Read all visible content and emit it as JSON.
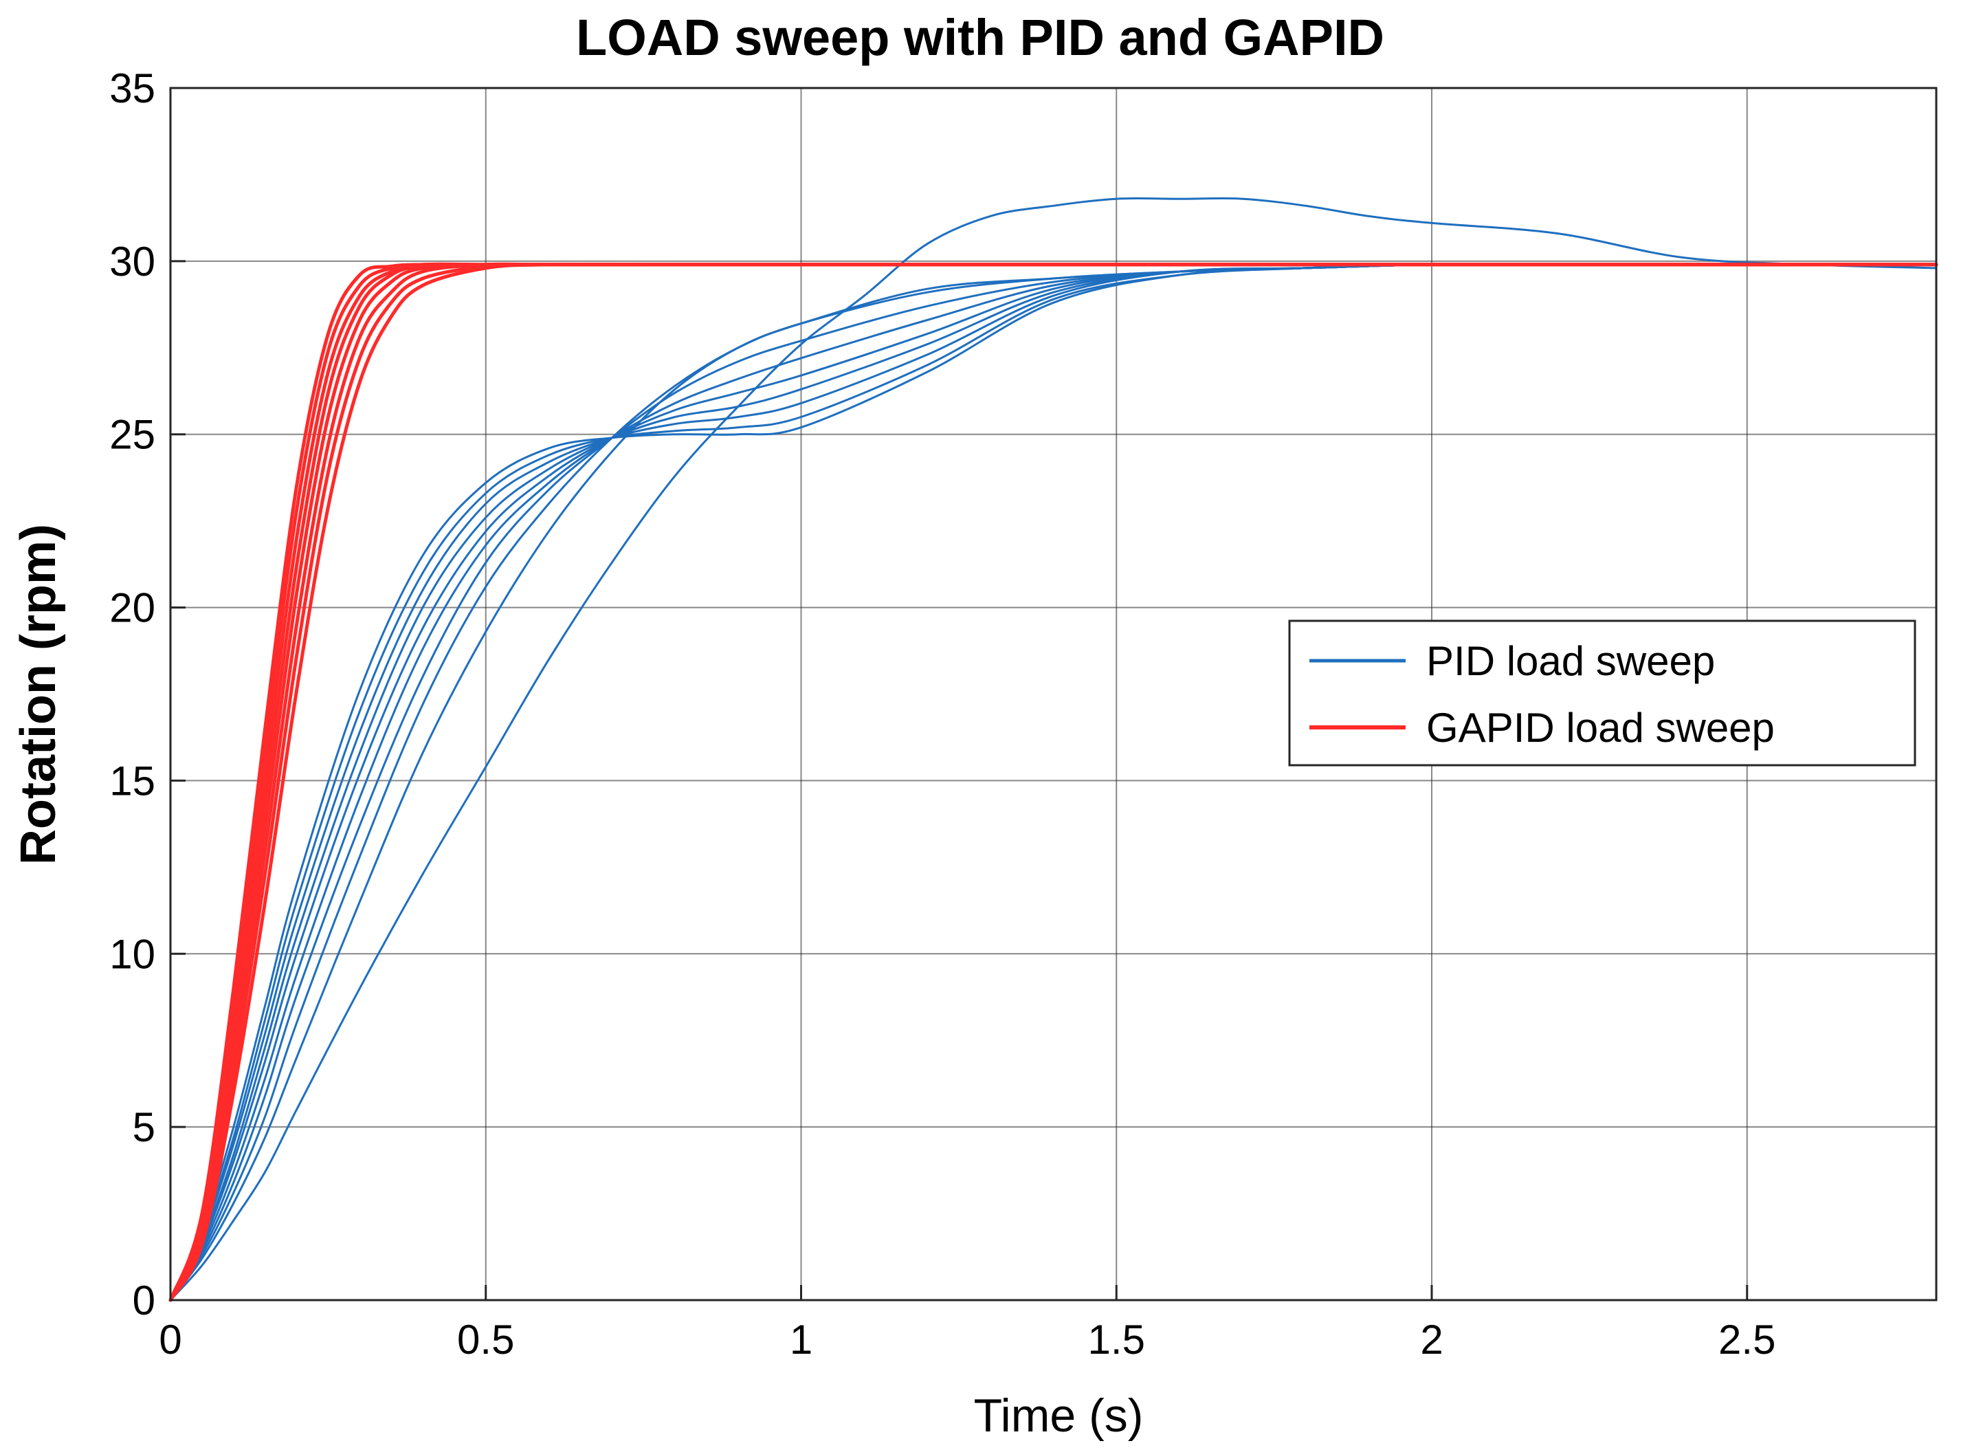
{
  "chart_data": {
    "type": "line",
    "title": "LOAD sweep with PID and GAPID",
    "xlabel": "Time (s)",
    "ylabel": "Rotation (rpm)",
    "xlim": [
      0,
      2.8
    ],
    "ylim": [
      0,
      35
    ],
    "xticks": [
      0,
      0.5,
      1,
      1.5,
      2,
      2.5
    ],
    "xtick_labels": [
      "0",
      "0.5",
      "1",
      "1.5",
      "2",
      "2.5"
    ],
    "yticks": [
      0,
      5,
      10,
      15,
      20,
      25,
      30,
      35
    ],
    "ytick_labels": [
      "0",
      "5",
      "10",
      "15",
      "20",
      "25",
      "30",
      "35"
    ],
    "grid": true,
    "legend": {
      "position": "center-right",
      "entries": [
        {
          "label": "PID load sweep",
          "color": "#1f6fbf"
        },
        {
          "label": "GAPID load sweep",
          "color": "#ff2a2a"
        }
      ]
    },
    "series": [
      {
        "name": "PID load sweep (load 1)",
        "group": "PID",
        "color": "#1f6fbf",
        "x": [
          0,
          0.05,
          0.1,
          0.15,
          0.2,
          0.3,
          0.4,
          0.5,
          0.6,
          0.7,
          0.8,
          0.9,
          1.0,
          1.2,
          1.4,
          1.6,
          1.8,
          2.0,
          2.2,
          2.4,
          2.6,
          2.8
        ],
        "y": [
          0,
          2,
          5,
          8.5,
          12,
          17.6,
          21.5,
          23.6,
          24.6,
          24.9,
          25.0,
          25.0,
          25.2,
          26.8,
          28.8,
          29.6,
          29.8,
          29.9,
          29.9,
          29.9,
          29.9,
          29.9
        ]
      },
      {
        "name": "PID load sweep (load 2)",
        "group": "PID",
        "color": "#1f6fbf",
        "x": [
          0,
          0.05,
          0.1,
          0.15,
          0.2,
          0.3,
          0.4,
          0.5,
          0.6,
          0.7,
          0.8,
          0.9,
          1.0,
          1.2,
          1.4,
          1.6,
          1.8,
          2.0,
          2.2,
          2.4,
          2.6,
          2.8
        ],
        "y": [
          0,
          1.9,
          4.7,
          8.1,
          11.5,
          17.0,
          21.0,
          23.3,
          24.4,
          24.9,
          25.1,
          25.2,
          25.5,
          27.0,
          28.9,
          29.6,
          29.8,
          29.9,
          29.9,
          29.9,
          29.9,
          29.9
        ]
      },
      {
        "name": "PID load sweep (load 3)",
        "group": "PID",
        "color": "#1f6fbf",
        "x": [
          0,
          0.05,
          0.1,
          0.15,
          0.2,
          0.3,
          0.4,
          0.5,
          0.6,
          0.7,
          0.8,
          0.9,
          1.0,
          1.2,
          1.4,
          1.6,
          1.8,
          2.0,
          2.2,
          2.4,
          2.6,
          2.8
        ],
        "y": [
          0,
          1.8,
          4.5,
          7.7,
          11.0,
          16.4,
          20.5,
          23.0,
          24.2,
          24.9,
          25.3,
          25.5,
          25.9,
          27.3,
          29.0,
          29.7,
          29.8,
          29.9,
          29.9,
          29.9,
          29.9,
          29.9
        ]
      },
      {
        "name": "PID load sweep (load 4)",
        "group": "PID",
        "color": "#1f6fbf",
        "x": [
          0,
          0.05,
          0.1,
          0.15,
          0.2,
          0.3,
          0.4,
          0.5,
          0.6,
          0.7,
          0.8,
          0.9,
          1.0,
          1.2,
          1.4,
          1.6,
          1.8,
          2.0,
          2.2,
          2.4,
          2.6,
          2.8
        ],
        "y": [
          0,
          1.7,
          4.2,
          7.3,
          10.5,
          15.8,
          20.0,
          22.6,
          24.0,
          24.9,
          25.5,
          25.8,
          26.3,
          27.6,
          29.1,
          29.7,
          29.8,
          29.9,
          29.9,
          29.9,
          29.9,
          29.9
        ]
      },
      {
        "name": "PID load sweep (load 5)",
        "group": "PID",
        "color": "#1f6fbf",
        "x": [
          0,
          0.05,
          0.1,
          0.15,
          0.2,
          0.3,
          0.4,
          0.5,
          0.6,
          0.7,
          0.8,
          0.9,
          1.0,
          1.2,
          1.4,
          1.6,
          1.8,
          2.0,
          2.2,
          2.4,
          2.6,
          2.8
        ],
        "y": [
          0,
          1.6,
          4.0,
          6.9,
          10.0,
          15.2,
          19.4,
          22.2,
          23.8,
          24.9,
          25.7,
          26.2,
          26.7,
          27.9,
          29.2,
          29.7,
          29.8,
          29.9,
          29.9,
          29.9,
          29.9,
          29.9
        ]
      },
      {
        "name": "PID load sweep (load 6)",
        "group": "PID",
        "color": "#1f6fbf",
        "x": [
          0,
          0.05,
          0.1,
          0.15,
          0.2,
          0.3,
          0.4,
          0.5,
          0.6,
          0.7,
          0.8,
          0.9,
          1.0,
          1.2,
          1.4,
          1.6,
          1.8,
          2.0,
          2.2,
          2.4,
          2.6,
          2.8
        ],
        "y": [
          0,
          1.5,
          3.7,
          6.4,
          9.4,
          14.5,
          18.8,
          21.8,
          23.6,
          24.9,
          25.9,
          26.6,
          27.2,
          28.3,
          29.3,
          29.7,
          29.8,
          29.9,
          29.9,
          29.9,
          29.9,
          29.9
        ]
      },
      {
        "name": "PID load sweep (load 7)",
        "group": "PID",
        "color": "#1f6fbf",
        "x": [
          0,
          0.05,
          0.1,
          0.15,
          0.2,
          0.3,
          0.4,
          0.5,
          0.6,
          0.7,
          0.8,
          0.9,
          1.0,
          1.2,
          1.4,
          1.6,
          1.8,
          2.0,
          2.2,
          2.4,
          2.6,
          2.8
        ],
        "y": [
          0,
          1.4,
          3.4,
          5.9,
          8.8,
          13.7,
          18.0,
          21.3,
          23.4,
          24.9,
          26.2,
          27.1,
          27.7,
          28.7,
          29.4,
          29.7,
          29.8,
          29.9,
          29.9,
          29.9,
          29.9,
          29.9
        ]
      },
      {
        "name": "PID load sweep (load 8)",
        "group": "PID",
        "color": "#1f6fbf",
        "x": [
          0,
          0.05,
          0.1,
          0.15,
          0.2,
          0.3,
          0.4,
          0.5,
          0.6,
          0.7,
          0.8,
          0.9,
          1.0,
          1.2,
          1.4,
          1.6,
          1.8,
          2.0,
          2.2,
          2.4,
          2.6,
          2.8
        ],
        "y": [
          0,
          1.3,
          3.1,
          5.3,
          8.0,
          12.8,
          17.2,
          20.6,
          23.0,
          24.9,
          26.4,
          27.5,
          28.2,
          29.1,
          29.5,
          29.7,
          29.8,
          29.9,
          29.9,
          29.9,
          29.9,
          29.9
        ]
      },
      {
        "name": "PID load sweep (load 9)",
        "group": "PID",
        "color": "#1f6fbf",
        "x": [
          0,
          0.05,
          0.1,
          0.15,
          0.2,
          0.3,
          0.4,
          0.5,
          0.6,
          0.7,
          0.8,
          0.9,
          1.0,
          1.2,
          1.4,
          1.6,
          1.8,
          2.0,
          2.2,
          2.4,
          2.6,
          2.8
        ],
        "y": [
          0,
          1.2,
          2.8,
          4.7,
          7.0,
          11.5,
          15.8,
          19.3,
          22.2,
          24.5,
          26.3,
          27.5,
          28.2,
          29.2,
          29.5,
          29.7,
          29.8,
          29.9,
          29.9,
          29.9,
          29.9,
          29.9
        ]
      },
      {
        "name": "PID load sweep (load 10)",
        "group": "PID",
        "color": "#1f6fbf",
        "x": [
          0,
          0.05,
          0.1,
          0.15,
          0.2,
          0.3,
          0.4,
          0.5,
          0.6,
          0.7,
          0.8,
          0.9,
          1.0,
          1.1,
          1.2,
          1.3,
          1.4,
          1.5,
          1.6,
          1.7,
          1.8,
          1.9,
          2.0,
          2.2,
          2.4,
          2.6,
          2.8
        ],
        "y": [
          0,
          1.0,
          2.3,
          3.7,
          5.5,
          9.0,
          12.3,
          15.4,
          18.5,
          21.3,
          23.8,
          25.8,
          27.6,
          29.0,
          30.5,
          31.3,
          31.6,
          31.8,
          31.8,
          31.8,
          31.6,
          31.3,
          31.1,
          30.8,
          30.1,
          29.9,
          29.8
        ]
      },
      {
        "name": "GAPID load sweep (load 1)",
        "group": "GAPID",
        "color": "#ff2a2a",
        "x": [
          0,
          0.05,
          0.1,
          0.15,
          0.2,
          0.25,
          0.3,
          0.35,
          0.4,
          0.5,
          0.6,
          0.8,
          1.0,
          1.5,
          2.0,
          2.5,
          2.8
        ],
        "y": [
          0,
          2.5,
          9.0,
          16.5,
          23.5,
          27.9,
          29.6,
          29.85,
          29.9,
          29.9,
          29.9,
          29.9,
          29.9,
          29.9,
          29.9,
          29.9,
          29.9
        ]
      },
      {
        "name": "GAPID load sweep (load 2)",
        "group": "GAPID",
        "color": "#ff2a2a",
        "x": [
          0,
          0.05,
          0.1,
          0.15,
          0.2,
          0.25,
          0.3,
          0.35,
          0.4,
          0.5,
          0.6,
          0.8,
          1.0,
          1.5,
          2.0,
          2.5,
          2.8
        ],
        "y": [
          0,
          2.3,
          8.5,
          15.8,
          22.8,
          27.4,
          29.3,
          29.8,
          29.9,
          29.9,
          29.9,
          29.9,
          29.9,
          29.9,
          29.9,
          29.9,
          29.9
        ]
      },
      {
        "name": "GAPID load sweep (load 3)",
        "group": "GAPID",
        "color": "#ff2a2a",
        "x": [
          0,
          0.05,
          0.1,
          0.15,
          0.2,
          0.25,
          0.3,
          0.35,
          0.4,
          0.5,
          0.6,
          0.8,
          1.0,
          1.5,
          2.0,
          2.5,
          2.8
        ],
        "y": [
          0,
          2.2,
          8.1,
          15.1,
          22.0,
          26.8,
          29.0,
          29.7,
          29.9,
          29.9,
          29.9,
          29.9,
          29.9,
          29.9,
          29.9,
          29.9,
          29.9
        ]
      },
      {
        "name": "GAPID load sweep (load 4)",
        "group": "GAPID",
        "color": "#ff2a2a",
        "x": [
          0,
          0.05,
          0.1,
          0.15,
          0.2,
          0.25,
          0.3,
          0.35,
          0.4,
          0.5,
          0.6,
          0.8,
          1.0,
          1.5,
          2.0,
          2.5,
          2.8
        ],
        "y": [
          0,
          2.1,
          7.7,
          14.4,
          21.2,
          26.2,
          28.7,
          29.6,
          29.85,
          29.9,
          29.9,
          29.9,
          29.9,
          29.9,
          29.9,
          29.9,
          29.9
        ]
      },
      {
        "name": "GAPID load sweep (load 5)",
        "group": "GAPID",
        "color": "#ff2a2a",
        "x": [
          0,
          0.05,
          0.1,
          0.15,
          0.2,
          0.25,
          0.3,
          0.35,
          0.4,
          0.5,
          0.6,
          0.8,
          1.0,
          1.5,
          2.0,
          2.5,
          2.8
        ],
        "y": [
          0,
          2.0,
          7.3,
          13.7,
          20.4,
          25.5,
          28.3,
          29.4,
          29.8,
          29.9,
          29.9,
          29.9,
          29.9,
          29.9,
          29.9,
          29.9,
          29.9
        ]
      },
      {
        "name": "GAPID load sweep (load 6)",
        "group": "GAPID",
        "color": "#ff2a2a",
        "x": [
          0,
          0.05,
          0.1,
          0.15,
          0.2,
          0.25,
          0.3,
          0.35,
          0.4,
          0.5,
          0.6,
          0.8,
          1.0,
          1.5,
          2.0,
          2.5,
          2.8
        ],
        "y": [
          0,
          1.9,
          6.9,
          13.0,
          19.5,
          24.7,
          27.8,
          29.1,
          29.7,
          29.9,
          29.9,
          29.9,
          29.9,
          29.9,
          29.9,
          29.9,
          29.9
        ]
      },
      {
        "name": "GAPID load sweep (load 7)",
        "group": "GAPID",
        "color": "#ff2a2a",
        "x": [
          0,
          0.05,
          0.1,
          0.15,
          0.2,
          0.25,
          0.3,
          0.35,
          0.4,
          0.5,
          0.6,
          0.8,
          1.0,
          1.5,
          2.0,
          2.5,
          2.8
        ],
        "y": [
          0,
          1.8,
          6.5,
          12.3,
          18.6,
          23.9,
          27.2,
          28.8,
          29.5,
          29.85,
          29.9,
          29.9,
          29.9,
          29.9,
          29.9,
          29.9,
          29.9
        ]
      },
      {
        "name": "GAPID load sweep (load 8)",
        "group": "GAPID",
        "color": "#ff2a2a",
        "x": [
          0,
          0.05,
          0.1,
          0.15,
          0.2,
          0.25,
          0.3,
          0.35,
          0.4,
          0.5,
          0.6,
          0.8,
          1.0,
          1.5,
          2.0,
          2.5,
          2.8
        ],
        "y": [
          0,
          1.6,
          6.0,
          11.5,
          17.6,
          22.9,
          26.5,
          28.4,
          29.3,
          29.8,
          29.9,
          29.9,
          29.9,
          29.9,
          29.9,
          29.9,
          29.9
        ]
      }
    ]
  }
}
